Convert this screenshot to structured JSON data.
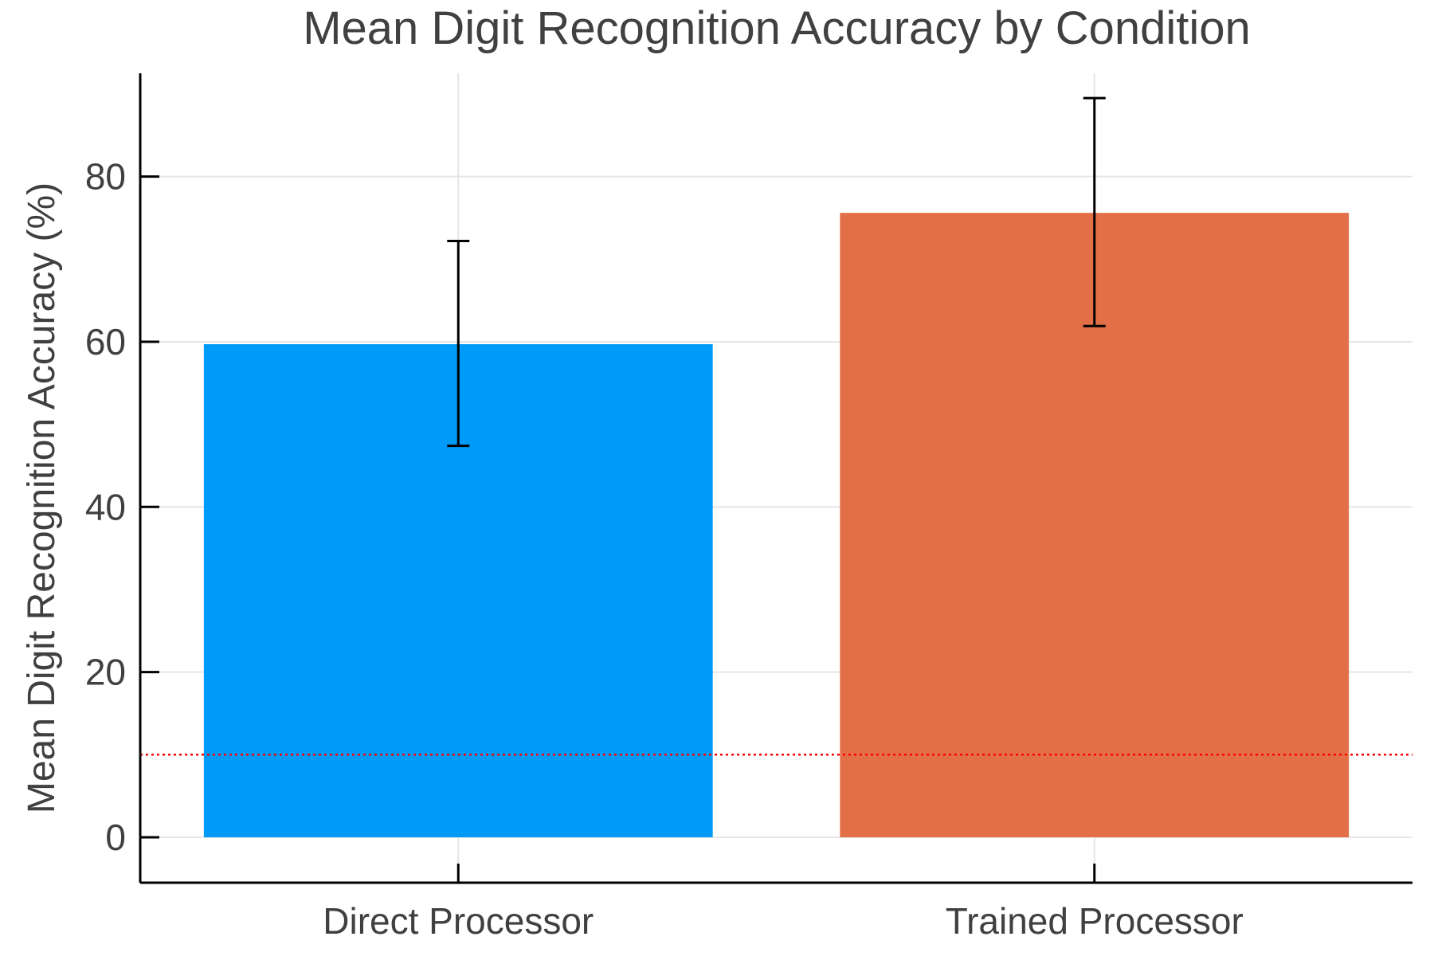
{
  "chart_data": {
    "type": "bar",
    "title": "Mean Digit Recognition Accuracy by Condition",
    "xlabel": "",
    "ylabel": "Mean Digit Recognition Accuracy (%)",
    "categories": [
      "Direct Processor",
      "Trained Processor"
    ],
    "values": [
      59.7,
      75.6
    ],
    "error_low": [
      47.4,
      61.9
    ],
    "error_high": [
      72.2,
      89.5
    ],
    "colors": [
      "#009af9",
      "#e26f46"
    ],
    "reference_line": {
      "y": 10,
      "color": "#ff0000",
      "style": "dotted"
    },
    "ylim": [
      -5.5,
      92.5
    ],
    "yticks": [
      0,
      20,
      40,
      60,
      80
    ],
    "grid": true,
    "legend": "none"
  }
}
